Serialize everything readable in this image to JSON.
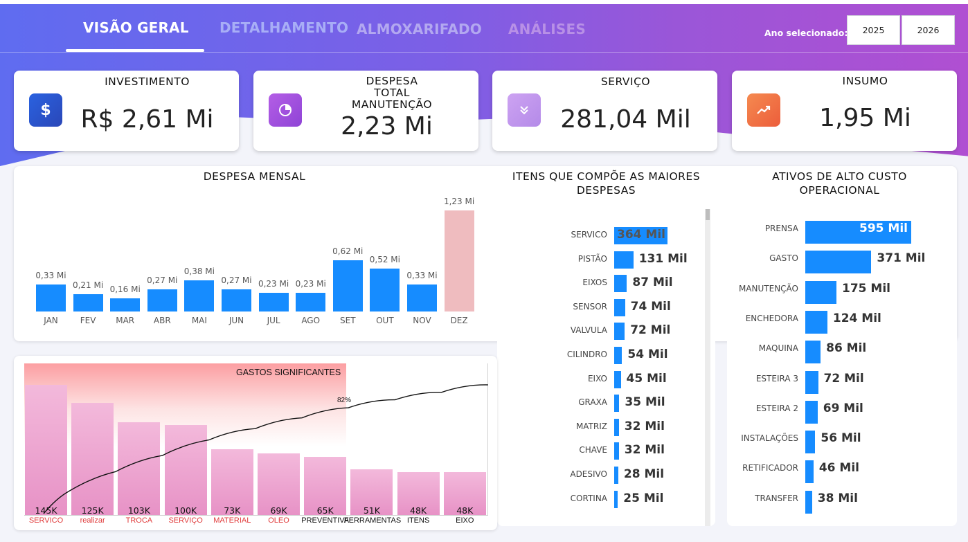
{
  "nav": {
    "tabs": [
      "VISÃO GERAL",
      "DETALHAMENTO",
      "ALMOXARIFADO",
      "ANÁLISES"
    ],
    "year_label": "Ano selecionado:",
    "years": [
      "2025",
      "2026"
    ]
  },
  "kpis": [
    {
      "title": "INVESTIMENTO",
      "value": "R$ 2,61 Mi",
      "icon": "dollar-icon",
      "color": "#2f5fd8"
    },
    {
      "title": "DESPESA TOTAL MANUTENÇÃO",
      "value": "2,23 Mi",
      "icon": "pie-chart-icon",
      "color": "#a855e0"
    },
    {
      "title": "SERVIÇO",
      "value": "281,04 Mil",
      "icon": "chevrons-down-icon",
      "color": "#c89af0"
    },
    {
      "title": "INSUMO",
      "value": "1,95 Mi",
      "icon": "trend-up-icon",
      "color": "#f0764a"
    }
  ],
  "colors": {
    "bar": "#168cff",
    "highlight": "#efbcbf",
    "pareto_label_red": "#e03a3a"
  },
  "chart_data": [
    {
      "type": "bar",
      "title": "DESPESA MENSAL",
      "categories": [
        "JAN",
        "FEV",
        "MAR",
        "ABR",
        "MAI",
        "JUN",
        "JUL",
        "AGO",
        "SET",
        "OUT",
        "NOV",
        "DEZ"
      ],
      "values": [
        0.33,
        0.21,
        0.16,
        0.27,
        0.38,
        0.27,
        0.23,
        0.23,
        0.62,
        0.52,
        0.33,
        1.23
      ],
      "labels": [
        "0,33 Mi",
        "0,21 Mi",
        "0,16 Mi",
        "0,27 Mi",
        "0,38 Mi",
        "0,27 Mi",
        "0,23 Mi",
        "0,23 Mi",
        "0,62 Mi",
        "0,52 Mi",
        "0,33 Mi",
        "1,23 Mi"
      ],
      "highlight_index": 11
    },
    {
      "type": "bar",
      "orientation": "horizontal",
      "title": "ITENS QUE COMPÕE AS MAIORES DESPESAS",
      "categories": [
        "SERVICO",
        "PISTÃO",
        "EIXOS",
        "SENSOR",
        "VALVULA",
        "CILINDRO",
        "EIXO",
        "GRAXA",
        "MATRIZ",
        "CHAVE",
        "ADESIVO",
        "CORTINA"
      ],
      "values": [
        364,
        131,
        87,
        74,
        72,
        54,
        45,
        35,
        32,
        32,
        28,
        25
      ],
      "labels": [
        "364 Mil",
        "131 Mil",
        "87 Mil",
        "74 Mil",
        "72 Mil",
        "54 Mil",
        "45 Mil",
        "35 Mil",
        "32 Mil",
        "32 Mil",
        "28 Mil",
        "25 Mil"
      ]
    },
    {
      "type": "bar",
      "orientation": "horizontal",
      "title": "ATIVOS DE ALTO CUSTO OPERACIONAL",
      "categories": [
        "PRENSA",
        "GASTO",
        "MANUTENÇÃO",
        "ENCHEDORA",
        "MAQUINA",
        "ESTEIRA 3",
        "ESTEIRA 2",
        "INSTALAÇÕES",
        "RETIFICADOR",
        "TRANSFER"
      ],
      "values": [
        595,
        371,
        175,
        124,
        86,
        72,
        69,
        56,
        46,
        38
      ],
      "labels": [
        "595 Mil",
        "371 Mil",
        "175 Mil",
        "124 Mil",
        "86 Mil",
        "72 Mil",
        "69 Mil",
        "56 Mil",
        "46 Mil",
        "38 Mil"
      ]
    },
    {
      "type": "bar",
      "title": "GASTOS SIGNIFICANTES",
      "categories": [
        "SERVICO",
        "realizar",
        "TROCA",
        "SERVIÇO",
        "MATERIAL",
        "OLEO",
        "PREVENTIVA",
        "FERRAMENTAS",
        "ITENS",
        "EIXO"
      ],
      "values": [
        145,
        125,
        103,
        100,
        73,
        69,
        65,
        51,
        48,
        48
      ],
      "labels": [
        "145K",
        "125K",
        "103K",
        "100K",
        "73K",
        "69K",
        "65K",
        "51K",
        "48K",
        "48K"
      ],
      "highlighted_categories": [
        0,
        1,
        2,
        3,
        4,
        5
      ],
      "cumulative_line_label": "82%"
    }
  ]
}
